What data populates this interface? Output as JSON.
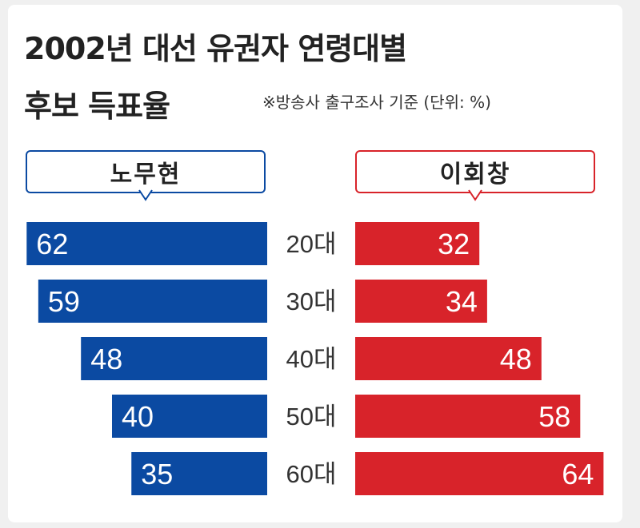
{
  "header": {
    "title_line1": "2002년 대선 유권자 연령대별",
    "title_line2": "후보 득표율",
    "note": "※방송사 출구조사 기준 (단위: %)"
  },
  "chart_data": {
    "type": "bar",
    "title": "2002년 대선 유권자 연령대별 후보 득표율",
    "note": "※방송사 출구조사 기준 (단위: %)",
    "categories": [
      "20대",
      "30대",
      "40대",
      "50대",
      "60대"
    ],
    "series": [
      {
        "name": "노무현",
        "values": [
          62,
          59,
          48,
          40,
          35
        ],
        "color": "#0b4aa2",
        "direction": "left"
      },
      {
        "name": "이회창",
        "values": [
          32,
          34,
          48,
          58,
          64
        ],
        "color": "#d8232a",
        "direction": "right"
      }
    ],
    "unit": "%",
    "xlim": [
      0,
      70
    ]
  }
}
